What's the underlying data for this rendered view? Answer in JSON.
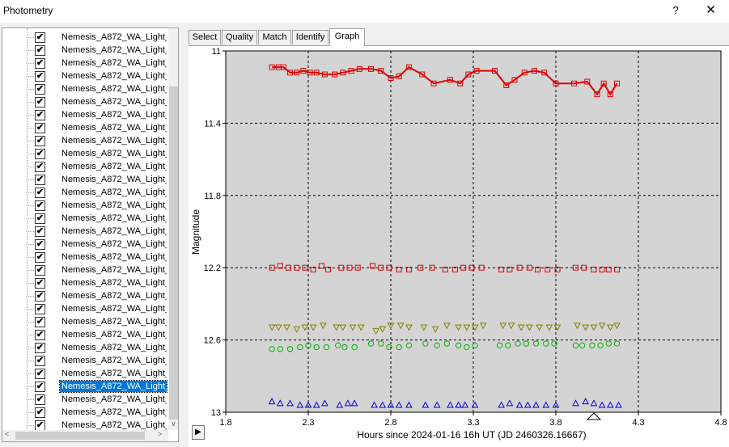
{
  "window": {
    "title": "Photometry",
    "help_label": "?",
    "close_label": "✕"
  },
  "tree": {
    "items": [
      "Nemesis_A872_WA_Light_",
      "Nemesis_A872_WA_Light_",
      "Nemesis_A872_WA_Light_",
      "Nemesis_A872_WA_Light_",
      "Nemesis_A872_WA_Light_",
      "Nemesis_A872_WA_Light_",
      "Nemesis_A872_WA_Light_",
      "Nemesis_A872_WA_Light_",
      "Nemesis_A872_WA_Light_",
      "Nemesis_A872_WA_Light_",
      "Nemesis_A872_WA_Light_",
      "Nemesis_A872_WA_Light_",
      "Nemesis_A872_WA_Light_",
      "Nemesis_A872_WA_Light_",
      "Nemesis_A872_WA_Light_",
      "Nemesis_A872_WA_Light_",
      "Nemesis_A872_WA_Light_",
      "Nemesis_A872_WA_Light_",
      "Nemesis_A872_WA_Light_",
      "Nemesis_A872_WA_Light_",
      "Nemesis_A872_WA_Light_",
      "Nemesis_A872_WA_Light_",
      "Nemesis_A872_WA_Light_",
      "Nemesis_A872_WA_Light_",
      "Nemesis_A872_WA_Light_",
      "Nemesis_A872_WA_Light_",
      "Nemesis_A872_WA_Light_",
      "Nemesis_A872_WA_Light_",
      "Nemesis_A872_WA_Light_",
      "Nemesis_A872_WA_Light_",
      "Nemesis_A872_WA_Light_"
    ],
    "selected_index": 27,
    "check_glyph": "✔"
  },
  "tabs": [
    "Select",
    "Quality",
    "Match",
    "Identify",
    "Graph"
  ],
  "active_tab": "Graph",
  "play_label": "▶",
  "chart_data": {
    "type": "scatter",
    "xlabel": "Hours since 2024-01-16 16h UT (JD 2460326.16667)",
    "ylabel": "Magnitude",
    "xlim": [
      1.8,
      4.8
    ],
    "ylim": [
      11,
      13
    ],
    "y_inverted": true,
    "x_ticks": [
      "1.8",
      "2.3",
      "2.8",
      "3.3",
      "3.8",
      "4.3",
      "4.8"
    ],
    "y_ticks": [
      "11",
      "11.4",
      "11.8",
      "12.2",
      "12.6",
      "13"
    ],
    "grid": true,
    "background": "#d4d4d4",
    "marker_indicator_x": 4.03,
    "series": [
      {
        "marker": "square",
        "color": "#e00000",
        "connected": true,
        "x": [
          2.08,
          2.12,
          2.15,
          2.19,
          2.23,
          2.27,
          2.31,
          2.35,
          2.4,
          2.46,
          2.51,
          2.56,
          2.61,
          2.68,
          2.74,
          2.8,
          2.85,
          2.91,
          2.99,
          3.06,
          3.16,
          3.22,
          3.27,
          3.32,
          3.43,
          3.5,
          3.55,
          3.61,
          3.67,
          3.73,
          3.8,
          3.91,
          3.99,
          4.05,
          4.09,
          4.13,
          4.17
        ],
        "y": [
          11.09,
          11.09,
          11.09,
          11.12,
          11.12,
          11.11,
          11.12,
          11.12,
          11.13,
          11.13,
          11.12,
          11.11,
          11.1,
          11.1,
          11.11,
          11.15,
          11.14,
          11.09,
          11.13,
          11.18,
          11.16,
          11.18,
          11.13,
          11.11,
          11.11,
          11.19,
          11.16,
          11.12,
          11.11,
          11.12,
          11.18,
          11.18,
          11.17,
          11.24,
          11.18,
          11.24,
          11.18
        ]
      },
      {
        "marker": "square",
        "color": "#e00000",
        "connected": false,
        "x": [
          2.08,
          2.13,
          2.18,
          2.23,
          2.28,
          2.33,
          2.38,
          2.42,
          2.5,
          2.55,
          2.6,
          2.69,
          2.74,
          2.79,
          2.85,
          2.91,
          2.98,
          3.05,
          3.13,
          3.19,
          3.24,
          3.29,
          3.35,
          3.47,
          3.52,
          3.58,
          3.64,
          3.69,
          3.75,
          3.81,
          3.92,
          3.97,
          4.03,
          4.08,
          4.12,
          4.17
        ],
        "y": [
          12.2,
          12.19,
          12.2,
          12.2,
          12.2,
          12.21,
          12.19,
          12.21,
          12.2,
          12.2,
          12.2,
          12.19,
          12.2,
          12.2,
          12.21,
          12.21,
          12.2,
          12.2,
          12.21,
          12.21,
          12.2,
          12.2,
          12.2,
          12.21,
          12.21,
          12.2,
          12.2,
          12.21,
          12.21,
          12.21,
          12.2,
          12.2,
          12.21,
          12.21,
          12.21,
          12.21
        ]
      },
      {
        "marker": "triangle-down",
        "color": "#808000",
        "connected": false,
        "x": [
          2.08,
          2.12,
          2.17,
          2.23,
          2.28,
          2.33,
          2.39,
          2.47,
          2.51,
          2.57,
          2.62,
          2.71,
          2.75,
          2.8,
          2.86,
          2.91,
          3.0,
          3.07,
          3.14,
          3.21,
          3.26,
          3.31,
          3.36,
          3.48,
          3.53,
          3.59,
          3.64,
          3.7,
          3.76,
          3.81,
          3.93,
          3.98,
          4.03,
          4.08,
          4.13,
          4.17
        ],
        "y": [
          12.53,
          12.53,
          12.53,
          12.54,
          12.53,
          12.53,
          12.52,
          12.53,
          12.53,
          12.53,
          12.53,
          12.55,
          12.54,
          12.52,
          12.52,
          12.53,
          12.53,
          12.54,
          12.52,
          12.53,
          12.53,
          12.53,
          12.52,
          12.52,
          12.52,
          12.53,
          12.53,
          12.53,
          12.53,
          12.53,
          12.52,
          12.53,
          12.53,
          12.52,
          12.53,
          12.52
        ]
      },
      {
        "marker": "circle",
        "color": "#00b000",
        "connected": false,
        "x": [
          2.08,
          2.13,
          2.19,
          2.25,
          2.3,
          2.35,
          2.41,
          2.48,
          2.52,
          2.58,
          2.68,
          2.74,
          2.79,
          2.85,
          2.91,
          3.01,
          3.08,
          3.14,
          3.21,
          3.26,
          3.31,
          3.46,
          3.51,
          3.57,
          3.62,
          3.68,
          3.74,
          3.79,
          3.92,
          3.96,
          4.02,
          4.07,
          4.12,
          4.17
        ],
        "y": [
          12.65,
          12.65,
          12.65,
          12.64,
          12.63,
          12.64,
          12.64,
          12.63,
          12.64,
          12.64,
          12.62,
          12.62,
          12.64,
          12.64,
          12.63,
          12.62,
          12.63,
          12.62,
          12.63,
          12.64,
          12.63,
          12.63,
          12.63,
          12.62,
          12.62,
          12.62,
          12.62,
          12.62,
          12.63,
          12.63,
          12.63,
          12.63,
          12.62,
          12.62
        ]
      },
      {
        "marker": "triangle-up",
        "color": "#0000e0",
        "connected": false,
        "x": [
          2.08,
          2.13,
          2.19,
          2.25,
          2.3,
          2.35,
          2.4,
          2.49,
          2.54,
          2.58,
          2.7,
          2.75,
          2.8,
          2.85,
          2.91,
          3.01,
          3.08,
          3.16,
          3.21,
          3.25,
          3.31,
          3.47,
          3.52,
          3.58,
          3.63,
          3.68,
          3.74,
          3.8,
          3.92,
          3.98,
          4.03,
          4.08,
          4.13,
          4.18
        ],
        "y": [
          12.94,
          12.95,
          12.95,
          12.96,
          12.96,
          12.96,
          12.95,
          12.96,
          12.95,
          12.95,
          12.96,
          12.96,
          12.96,
          12.96,
          12.96,
          12.96,
          12.96,
          12.96,
          12.96,
          12.96,
          12.96,
          12.96,
          12.95,
          12.96,
          12.96,
          12.96,
          12.96,
          12.96,
          12.95,
          12.94,
          12.95,
          12.96,
          12.96,
          12.96
        ]
      }
    ]
  }
}
